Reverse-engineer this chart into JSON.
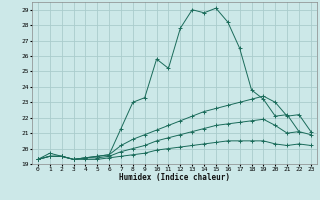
{
  "xlabel": "Humidex (Indice chaleur)",
  "ylabel": "",
  "background_color": "#cce8e8",
  "grid_color": "#aacccc",
  "line_color": "#1a6b5a",
  "xlim": [
    -0.5,
    23.5
  ],
  "ylim": [
    19,
    29.5
  ],
  "yticks": [
    19,
    20,
    21,
    22,
    23,
    24,
    25,
    26,
    27,
    28,
    29
  ],
  "xticks": [
    0,
    1,
    2,
    3,
    4,
    5,
    6,
    7,
    8,
    9,
    10,
    11,
    12,
    13,
    14,
    15,
    16,
    17,
    18,
    19,
    20,
    21,
    22,
    23
  ],
  "series": [
    [
      19.3,
      19.7,
      19.5,
      19.3,
      19.4,
      19.5,
      19.6,
      21.3,
      23.0,
      23.3,
      25.8,
      25.2,
      27.8,
      29.0,
      28.8,
      29.1,
      28.2,
      26.5,
      23.8,
      23.2,
      22.1,
      22.2,
      21.1,
      null
    ],
    [
      19.3,
      19.5,
      19.5,
      19.3,
      19.4,
      19.5,
      19.6,
      20.2,
      20.6,
      20.9,
      21.2,
      21.5,
      21.8,
      22.1,
      22.4,
      22.6,
      22.8,
      23.0,
      23.2,
      23.4,
      23.0,
      22.1,
      22.2,
      21.1
    ],
    [
      19.3,
      19.5,
      19.5,
      19.3,
      19.4,
      19.4,
      19.5,
      19.8,
      20.0,
      20.2,
      20.5,
      20.7,
      20.9,
      21.1,
      21.3,
      21.5,
      21.6,
      21.7,
      21.8,
      21.9,
      21.5,
      21.0,
      21.1,
      20.9
    ],
    [
      19.3,
      19.5,
      19.5,
      19.3,
      19.3,
      19.3,
      19.4,
      19.5,
      19.6,
      19.7,
      19.9,
      20.0,
      20.1,
      20.2,
      20.3,
      20.4,
      20.5,
      20.5,
      20.5,
      20.5,
      20.3,
      20.2,
      20.3,
      20.2
    ]
  ]
}
